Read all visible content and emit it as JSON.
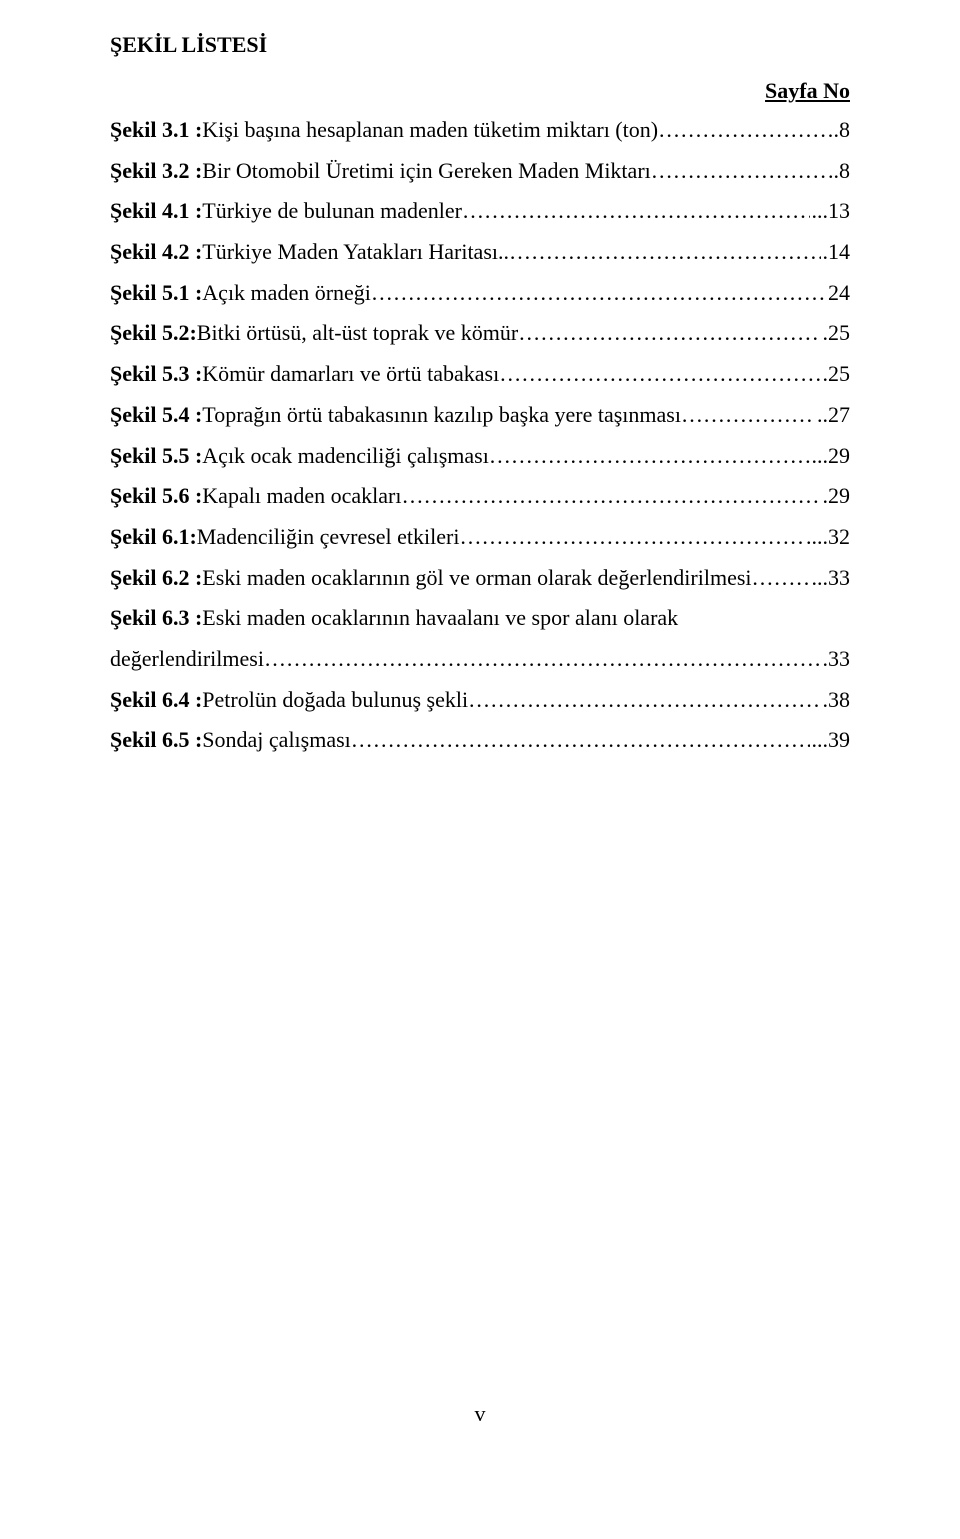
{
  "title": "ŞEKİL LİSTESİ",
  "page_no_label": "Sayfa No",
  "entries": [
    {
      "label": "Şekil 3.1 :",
      "desc": " Kişi başına hesaplanan maden tüketim miktarı (ton)",
      "page": ".8"
    },
    {
      "label": "Şekil 3.2 :",
      "desc": " Bir Otomobil Üretimi için Gereken Maden Miktarı",
      "page": "..8"
    },
    {
      "label": "Şekil 4.1 :",
      "desc": " Türkiye de bulunan madenler",
      "page": "...13"
    },
    {
      "label": "Şekil 4.2 :",
      "desc": " Türkiye Maden Yatakları Haritası..",
      "page": ".14"
    },
    {
      "label": "Şekil 5.1 :",
      "desc": " Açık maden örneği",
      "page": "24"
    },
    {
      "label": "Şekil 5.2:",
      "desc": " Bitki örtüsü, alt-üst toprak ve kömür",
      "page": ".25"
    },
    {
      "label": "Şekil 5.3 :",
      "desc": " Kömür damarları ve örtü tabakası",
      "page": ".25"
    },
    {
      "label": "Şekil 5.4 :",
      "desc": " Toprağın örtü tabakasının kazılıp başka yere taşınması",
      "page": "..27"
    },
    {
      "label": "Şekil 5.5 :",
      "desc": " Açık ocak madenciliği çalışması",
      "page": "...29"
    },
    {
      "label": "Şekil 5.6 :",
      "desc": "  Kapalı maden ocakları",
      "page": ".29"
    },
    {
      "label": "Şekil 6.1:",
      "desc": " Madenciliğin çevresel etkileri",
      "page": "....32"
    },
    {
      "label": "Şekil 6.2 :",
      "desc": " Eski maden ocaklarının göl ve orman olarak değerlendirilmesi",
      "page": "...33"
    },
    {
      "label": "Şekil 6.3 :",
      "desc": " Eski maden ocaklarının havaalanı ve spor alanı olarak",
      "page": ""
    },
    {
      "label": "",
      "desc": "değerlendirilmesi",
      "page": ".33",
      "is_continuation": true
    },
    {
      "label": "Şekil 6.4 :",
      "desc": " Petrolün doğada bulunuş şekli",
      "page": ".38"
    },
    {
      "label": "Şekil 6.5 :",
      "desc": " Sondaj çalışması",
      "page": "...39"
    }
  ],
  "footer": "v",
  "style": {
    "font_family": "Times New Roman",
    "title_fontsize_pt": 16,
    "body_fontsize_pt": 16,
    "text_color": "#000000",
    "background_color": "#ffffff",
    "line_height": 1.85
  }
}
